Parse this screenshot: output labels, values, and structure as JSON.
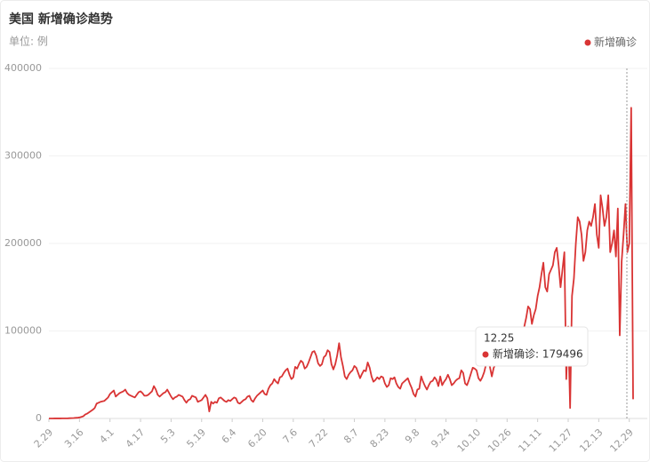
{
  "chart_data": {
    "type": "line",
    "title": "美国 新增确诊趋势",
    "subtitle": "单位: 例",
    "categories": [
      "2.29",
      null,
      null,
      null,
      null,
      null,
      null,
      null,
      null,
      null,
      null,
      null,
      null,
      null,
      null,
      null,
      "3.16",
      null,
      null,
      null,
      null,
      null,
      null,
      null,
      null,
      null,
      null,
      null,
      null,
      null,
      null,
      null,
      "4.1",
      null,
      null,
      null,
      null,
      null,
      null,
      null,
      null,
      null,
      null,
      null,
      null,
      null,
      null,
      null,
      "4.17",
      null,
      null,
      null,
      null,
      null,
      null,
      null,
      null,
      null,
      null,
      null,
      null,
      null,
      null,
      null,
      "5.3",
      null,
      null,
      null,
      null,
      null,
      null,
      null,
      null,
      null,
      null,
      null,
      null,
      null,
      null,
      null,
      "5.19",
      null,
      null,
      null,
      null,
      null,
      null,
      null,
      null,
      null,
      null,
      null,
      null,
      null,
      null,
      null,
      "6.4",
      null,
      null,
      null,
      null,
      null,
      null,
      null,
      null,
      null,
      null,
      null,
      null,
      null,
      null,
      null,
      "6.20",
      null,
      null,
      null,
      null,
      null,
      null,
      null,
      null,
      null,
      null,
      null,
      null,
      null,
      null,
      null,
      "7.6",
      null,
      null,
      null,
      null,
      null,
      null,
      null,
      null,
      null,
      null,
      null,
      null,
      null,
      null,
      null,
      "7.22",
      null,
      null,
      null,
      null,
      null,
      null,
      null,
      null,
      null,
      null,
      null,
      null,
      null,
      null,
      null,
      "8.7",
      null,
      null,
      null,
      null,
      null,
      null,
      null,
      null,
      null,
      null,
      null,
      null,
      null,
      null,
      null,
      "8.23",
      null,
      null,
      null,
      null,
      null,
      null,
      null,
      null,
      null,
      null,
      null,
      null,
      null,
      null,
      null,
      "9.8",
      null,
      null,
      null,
      null,
      null,
      null,
      null,
      null,
      null,
      null,
      null,
      null,
      null,
      null,
      null,
      "9.24",
      null,
      null,
      null,
      null,
      null,
      null,
      null,
      null,
      null,
      null,
      null,
      null,
      null,
      null,
      null,
      "10.10",
      null,
      null,
      null,
      null,
      null,
      null,
      null,
      null,
      null,
      null,
      null,
      null,
      null,
      null,
      null,
      "10.26",
      null,
      null,
      null,
      null,
      null,
      null,
      null,
      null,
      null,
      null,
      null,
      null,
      null,
      null,
      null,
      "11.11",
      null,
      null,
      null,
      null,
      null,
      null,
      null,
      null,
      null,
      null,
      null,
      null,
      null,
      null,
      null,
      "11.27",
      null,
      null,
      null,
      null,
      null,
      null,
      null,
      null,
      null,
      null,
      null,
      null,
      null,
      null,
      null,
      "12.13",
      null,
      null,
      null,
      null,
      null,
      null,
      null,
      null,
      null,
      null,
      null,
      null,
      null,
      null,
      null,
      "12.29",
      null,
      null
    ],
    "series": [
      {
        "name": "新增确诊",
        "color": "#d93434",
        "values": [
          10,
          20,
          30,
          40,
          50,
          60,
          70,
          100,
          120,
          150,
          200,
          300,
          400,
          500,
          700,
          800,
          1200,
          1800,
          2500,
          4500,
          5500,
          7000,
          8500,
          10000,
          12000,
          17000,
          18000,
          19000,
          19500,
          20000,
          22000,
          24000,
          28000,
          30000,
          32000,
          25000,
          27000,
          29000,
          30000,
          31000,
          33000,
          29000,
          27000,
          26000,
          25000,
          24000,
          27000,
          30000,
          31000,
          29000,
          26000,
          26000,
          27000,
          29000,
          31000,
          37000,
          33000,
          27000,
          25000,
          27000,
          29000,
          30000,
          33000,
          29000,
          25000,
          22000,
          24000,
          25000,
          27000,
          26000,
          25000,
          21000,
          18000,
          21000,
          22000,
          26000,
          25000,
          24000,
          19000,
          20000,
          21000,
          24000,
          27000,
          23000,
          8000,
          19000,
          17000,
          19000,
          18000,
          23000,
          24000,
          22000,
          20000,
          19000,
          21000,
          20000,
          22000,
          24000,
          23000,
          18000,
          17000,
          19000,
          21000,
          22000,
          25000,
          26000,
          21000,
          19000,
          23000,
          26000,
          28000,
          30000,
          32000,
          28000,
          27000,
          34000,
          38000,
          40000,
          45000,
          42000,
          40000,
          47000,
          48000,
          52000,
          55000,
          57000,
          50000,
          45000,
          47000,
          59000,
          57000,
          62000,
          66000,
          64000,
          57000,
          59000,
          64000,
          70000,
          76000,
          77000,
          72000,
          63000,
          60000,
          62000,
          70000,
          72000,
          78000,
          76000,
          62000,
          56000,
          62000,
          72000,
          86000,
          70000,
          60000,
          48000,
          45000,
          50000,
          53000,
          55000,
          60000,
          58000,
          52000,
          46000,
          51000,
          55000,
          54000,
          64000,
          58000,
          48000,
          42000,
          44000,
          47000,
          45000,
          48000,
          47000,
          40000,
          36000,
          38000,
          46000,
          45000,
          47000,
          40000,
          36000,
          34000,
          40000,
          42000,
          44000,
          46000,
          40000,
          35000,
          28000,
          25000,
          33000,
          34000,
          48000,
          42000,
          37000,
          33000,
          38000,
          42000,
          43000,
          47000,
          44000,
          37000,
          48000,
          38000,
          42000,
          45000,
          50000,
          45000,
          38000,
          40000,
          43000,
          45000,
          46000,
          55000,
          52000,
          40000,
          38000,
          44000,
          51000,
          58000,
          57000,
          55000,
          46000,
          43000,
          47000,
          53000,
          62000,
          69000,
          59000,
          48000,
          58000,
          62000,
          63000,
          75000,
          82000,
          80000,
          62000,
          66000,
          75000,
          85000,
          90000,
          100000,
          83000,
          75000,
          90000,
          95000,
          105000,
          115000,
          128000,
          125000,
          108000,
          118000,
          125000,
          140000,
          150000,
          165000,
          178000,
          150000,
          145000,
          165000,
          170000,
          175000,
          190000,
          195000,
          175000,
          150000,
          170000,
          190000,
          45000,
          105000,
          12000,
          140000,
          160000,
          200000,
          230000,
          225000,
          210000,
          180000,
          190000,
          215000,
          225000,
          220000,
          230000,
          245000,
          210000,
          195000,
          255000,
          240000,
          220000,
          230000,
          255000,
          190000,
          200000,
          215000,
          185000,
          240000,
          95000,
          179496,
          210000,
          245000,
          190000,
          200000,
          355000,
          22000
        ]
      }
    ],
    "ylim": [
      0,
      400000
    ],
    "yticks": [
      0,
      100000,
      200000,
      300000,
      400000
    ],
    "grid": true,
    "legend": "top-right",
    "tooltip": {
      "title": "12.25",
      "text": "新增确诊: 179496"
    }
  }
}
